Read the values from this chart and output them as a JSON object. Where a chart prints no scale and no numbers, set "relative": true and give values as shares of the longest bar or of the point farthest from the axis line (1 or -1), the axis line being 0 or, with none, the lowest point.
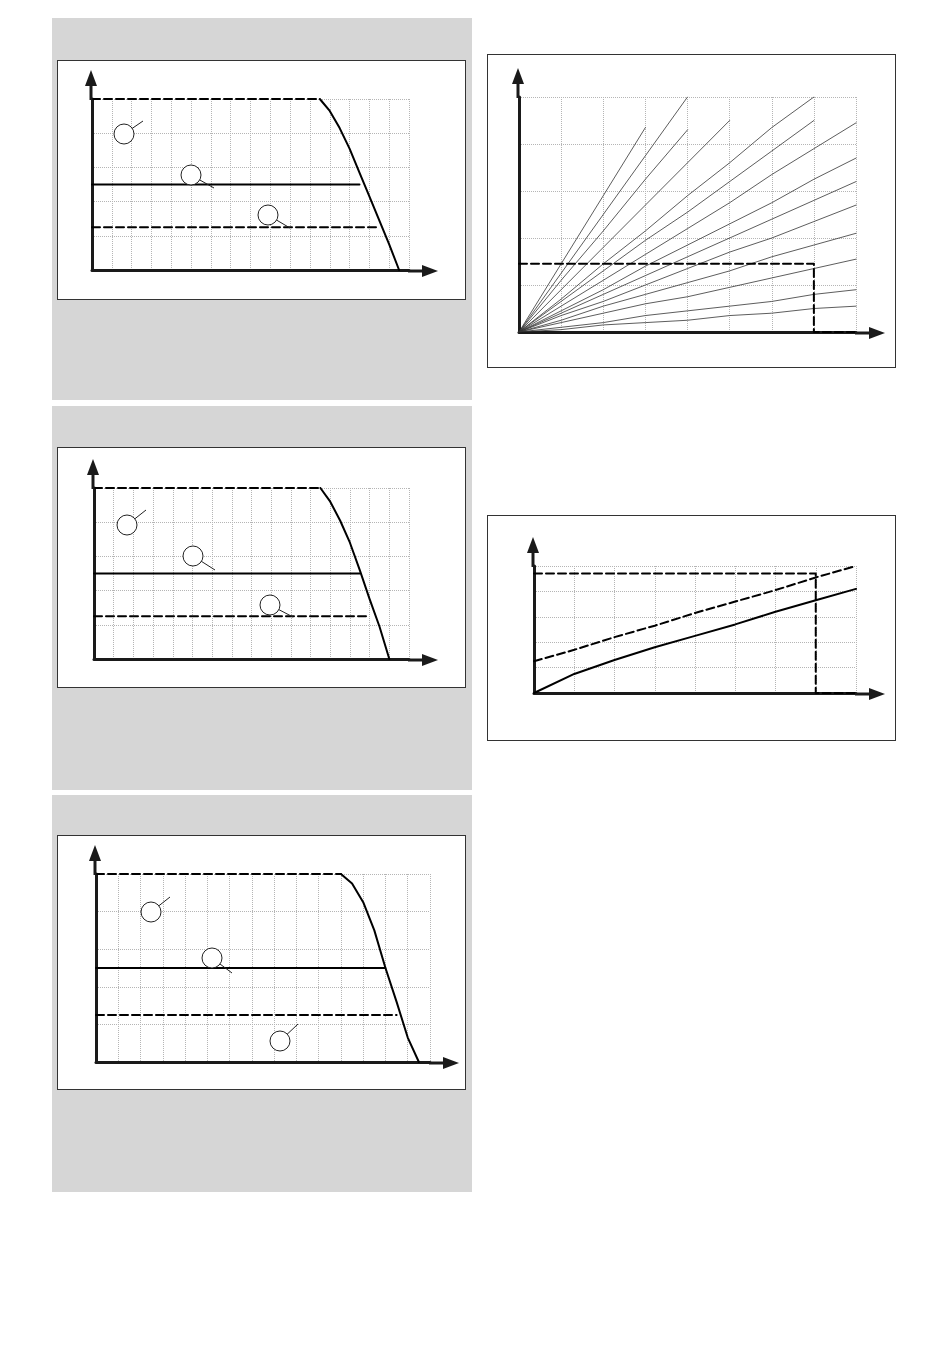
{
  "chart_data": [
    {
      "type": "line",
      "relative": true,
      "grid": true,
      "marker": "none",
      "categories": [
        null,
        null,
        null,
        null,
        null,
        null,
        null,
        null,
        null,
        null,
        null,
        null,
        null,
        null,
        null,
        null,
        null,
        null,
        null,
        null,
        null,
        null,
        null,
        null,
        null,
        null,
        null,
        null,
        null,
        null,
        null,
        null,
        null
      ],
      "series": [
        {
          "color": "#000000",
          "line_style": "dashed",
          "values": [
            1,
            1,
            1,
            1,
            1,
            1,
            1,
            1,
            1,
            1,
            1,
            1,
            1,
            1,
            1,
            1,
            1,
            1,
            1,
            1,
            1,
            1,
            1,
            1,
            null,
            null,
            null,
            null,
            null,
            null,
            null,
            null,
            null
          ]
        },
        {
          "color": "#000000",
          "line_style": "solid",
          "values": [
            null,
            null,
            null,
            null,
            null,
            null,
            null,
            null,
            null,
            null,
            null,
            null,
            null,
            null,
            null,
            null,
            null,
            null,
            null,
            null,
            null,
            null,
            null,
            1,
            0.93,
            0.83,
            0.71,
            0.57,
            0.43,
            0.29,
            0.15,
            0,
            null
          ]
        },
        {
          "color": "#000000",
          "line_style": "solid",
          "values": [
            0.5,
            0.5,
            0.5,
            0.5,
            0.5,
            0.5,
            0.5,
            0.5,
            0.5,
            0.5,
            0.5,
            0.5,
            0.5,
            0.5,
            0.5,
            0.5,
            0.5,
            0.5,
            0.5,
            0.5,
            0.5,
            0.5,
            0.5,
            0.5,
            0.5,
            0.5,
            0.5,
            0.5,
            null,
            null,
            null,
            null,
            null
          ]
        },
        {
          "color": "#000000",
          "line_style": "dashed",
          "values": [
            0.25,
            0.25,
            0.25,
            0.25,
            0.25,
            0.25,
            0.25,
            0.25,
            0.25,
            0.25,
            0.25,
            0.25,
            0.25,
            0.25,
            0.25,
            0.25,
            0.25,
            0.25,
            0.25,
            0.25,
            0.25,
            0.25,
            0.25,
            0.25,
            0.25,
            0.25,
            0.25,
            0.25,
            0.25,
            0.25,
            null,
            null,
            null
          ]
        }
      ]
    },
    {
      "type": "line",
      "relative": true,
      "grid": true,
      "marker": "none",
      "categories": [
        null,
        null,
        null,
        null,
        null,
        null,
        null,
        null,
        null
      ],
      "series": [
        {
          "color": "#333333",
          "line_style": "solid",
          "values": [
            0,
            0.29,
            0.58,
            0.87,
            null,
            null,
            null,
            null,
            null
          ]
        },
        {
          "color": "#333333",
          "line_style": "solid",
          "values": [
            0,
            0.25,
            0.5,
            0.75,
            1,
            null,
            null,
            null,
            null
          ]
        },
        {
          "color": "#333333",
          "line_style": "solid",
          "values": [
            0,
            0.22,
            0.43,
            0.65,
            0.86,
            null,
            null,
            null,
            null
          ]
        },
        {
          "color": "#333333",
          "line_style": "solid",
          "values": [
            0,
            0.18,
            0.36,
            0.54,
            0.72,
            0.9,
            null,
            null,
            null
          ]
        },
        {
          "color": "#333333",
          "line_style": "solid",
          "values": [
            0,
            0.14,
            0.29,
            0.43,
            0.58,
            0.72,
            0.87,
            1,
            null
          ]
        },
        {
          "color": "#333333",
          "line_style": "solid",
          "values": [
            0,
            0.13,
            0.26,
            0.39,
            0.51,
            0.64,
            0.77,
            0.9,
            null
          ]
        },
        {
          "color": "#333333",
          "line_style": "solid",
          "values": [
            0,
            0.11,
            0.22,
            0.33,
            0.44,
            0.55,
            0.67,
            0.78,
            0.89
          ]
        },
        {
          "color": "#333333",
          "line_style": "solid",
          "values": [
            0,
            0.09,
            0.18,
            0.28,
            0.37,
            0.46,
            0.55,
            0.65,
            0.74
          ]
        },
        {
          "color": "#333333",
          "line_style": "solid",
          "values": [
            0,
            0.08,
            0.16,
            0.24,
            0.32,
            0.4,
            0.48,
            0.56,
            0.64
          ]
        },
        {
          "color": "#333333",
          "line_style": "solid",
          "values": [
            0,
            0.07,
            0.13,
            0.2,
            0.27,
            0.34,
            0.4,
            0.47,
            0.54
          ]
        },
        {
          "color": "#333333",
          "line_style": "solid",
          "values": [
            0,
            0.05,
            0.11,
            0.16,
            0.21,
            0.26,
            0.32,
            0.37,
            0.42
          ]
        },
        {
          "color": "#333333",
          "line_style": "solid",
          "values": [
            0,
            0.04,
            0.08,
            0.12,
            0.15,
            0.19,
            0.23,
            0.27,
            0.31
          ]
        },
        {
          "color": "#333333",
          "line_style": "solid",
          "values": [
            0,
            0.02,
            0.04,
            0.07,
            0.09,
            0.11,
            0.13,
            0.16,
            0.18
          ]
        },
        {
          "color": "#333333",
          "line_style": "solid",
          "values": [
            0,
            0.01,
            0.03,
            0.04,
            0.05,
            0.07,
            0.08,
            0.1,
            0.11
          ]
        },
        {
          "type": "step",
          "color": "#000000",
          "line_style": "dashed",
          "values": [
            0.29,
            0.29,
            0.29,
            0.29,
            0.29,
            0.29,
            0.29,
            0.29,
            0
          ]
        }
      ]
    },
    {
      "type": "line",
      "relative": true,
      "grid": true,
      "marker": "none",
      "categories": [
        null,
        null,
        null,
        null,
        null,
        null,
        null,
        null,
        null,
        null,
        null,
        null,
        null,
        null,
        null,
        null,
        null,
        null,
        null,
        null,
        null,
        null,
        null,
        null,
        null,
        null,
        null,
        null,
        null,
        null,
        null,
        null,
        null
      ],
      "series": [
        {
          "color": "#000000",
          "line_style": "dashed",
          "values": [
            1,
            1,
            1,
            1,
            1,
            1,
            1,
            1,
            1,
            1,
            1,
            1,
            1,
            1,
            1,
            1,
            1,
            1,
            1,
            1,
            1,
            1,
            1,
            1,
            null,
            null,
            null,
            null,
            null,
            null,
            null,
            null,
            null
          ]
        },
        {
          "color": "#000000",
          "line_style": "solid",
          "values": [
            null,
            null,
            null,
            null,
            null,
            null,
            null,
            null,
            null,
            null,
            null,
            null,
            null,
            null,
            null,
            null,
            null,
            null,
            null,
            null,
            null,
            null,
            null,
            1,
            0.92,
            0.81,
            0.68,
            0.52,
            0.35,
            0.19,
            0,
            null,
            null
          ]
        },
        {
          "color": "#000000",
          "line_style": "solid",
          "values": [
            0.5,
            0.5,
            0.5,
            0.5,
            0.5,
            0.5,
            0.5,
            0.5,
            0.5,
            0.5,
            0.5,
            0.5,
            0.5,
            0.5,
            0.5,
            0.5,
            0.5,
            0.5,
            0.5,
            0.5,
            0.5,
            0.5,
            0.5,
            0.5,
            0.5,
            0.5,
            0.5,
            0.5,
            null,
            null,
            null,
            null,
            null
          ]
        },
        {
          "color": "#000000",
          "line_style": "dashed",
          "values": [
            0.25,
            0.25,
            0.25,
            0.25,
            0.25,
            0.25,
            0.25,
            0.25,
            0.25,
            0.25,
            0.25,
            0.25,
            0.25,
            0.25,
            0.25,
            0.25,
            0.25,
            0.25,
            0.25,
            0.25,
            0.25,
            0.25,
            0.25,
            0.25,
            0.25,
            0.25,
            0.25,
            0.25,
            0.25,
            null,
            null,
            null,
            null
          ]
        }
      ]
    },
    {
      "type": "line",
      "relative": true,
      "grid": true,
      "marker": "none",
      "categories": [
        null,
        null,
        null,
        null,
        null,
        null,
        null,
        null,
        null
      ],
      "series": [
        {
          "color": "#000000",
          "line_style": "solid",
          "values": [
            0,
            0.15,
            0.26,
            0.36,
            0.45,
            0.54,
            0.64,
            0.73,
            0.82
          ]
        },
        {
          "color": "#000000",
          "line_style": "dashed",
          "values": [
            0.25,
            0.34,
            0.44,
            0.53,
            0.63,
            0.72,
            0.81,
            0.91,
            1
          ]
        },
        {
          "type": "step",
          "color": "#000000",
          "line_style": "dashed",
          "values": [
            0.94,
            0.94,
            0.94,
            0.94,
            0.94,
            0.94,
            0.94,
            0.94,
            0
          ]
        }
      ]
    },
    {
      "type": "line",
      "relative": true,
      "grid": true,
      "marker": "none",
      "categories": [
        null,
        null,
        null,
        null,
        null,
        null,
        null,
        null,
        null,
        null,
        null,
        null,
        null,
        null,
        null,
        null,
        null,
        null,
        null,
        null,
        null,
        null,
        null,
        null,
        null,
        null,
        null,
        null,
        null,
        null,
        null
      ],
      "series": [
        {
          "color": "#000000",
          "line_style": "dashed",
          "values": [
            1,
            1,
            1,
            1,
            1,
            1,
            1,
            1,
            1,
            1,
            1,
            1,
            1,
            1,
            1,
            1,
            1,
            1,
            1,
            1,
            1,
            1,
            1,
            null,
            null,
            null,
            null,
            null,
            null,
            null,
            null
          ]
        },
        {
          "color": "#000000",
          "line_style": "solid",
          "values": [
            null,
            null,
            null,
            null,
            null,
            null,
            null,
            null,
            null,
            null,
            null,
            null,
            null,
            null,
            null,
            null,
            null,
            null,
            null,
            null,
            null,
            null,
            1,
            0.95,
            0.85,
            0.7,
            0.5,
            0.32,
            0.13,
            0,
            null
          ]
        },
        {
          "color": "#000000",
          "line_style": "solid",
          "values": [
            0.5,
            0.5,
            0.5,
            0.5,
            0.5,
            0.5,
            0.5,
            0.5,
            0.5,
            0.5,
            0.5,
            0.5,
            0.5,
            0.5,
            0.5,
            0.5,
            0.5,
            0.5,
            0.5,
            0.5,
            0.5,
            0.5,
            0.5,
            0.5,
            0.5,
            0.5,
            0.5,
            null,
            null,
            null,
            null
          ]
        },
        {
          "color": "#000000",
          "line_style": "dashed",
          "values": [
            0.25,
            0.25,
            0.25,
            0.25,
            0.25,
            0.25,
            0.25,
            0.25,
            0.25,
            0.25,
            0.25,
            0.25,
            0.25,
            0.25,
            0.25,
            0.25,
            0.25,
            0.25,
            0.25,
            0.25,
            0.25,
            0.25,
            0.25,
            0.25,
            0.25,
            0.25,
            0.25,
            0.25,
            null,
            null,
            null
          ]
        }
      ]
    }
  ]
}
